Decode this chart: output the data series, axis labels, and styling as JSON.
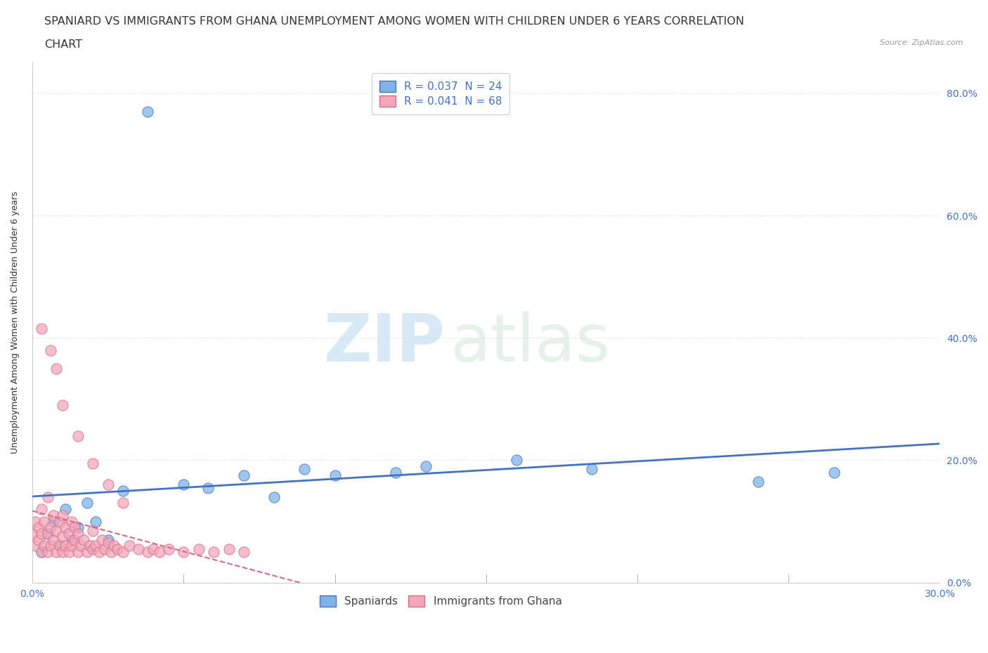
{
  "title_line1": "SPANIARD VS IMMIGRANTS FROM GHANA UNEMPLOYMENT AMONG WOMEN WITH CHILDREN UNDER 6 YEARS CORRELATION",
  "title_line2": "CHART",
  "source_text": "Source: ZipAtlas.com",
  "ylabel": "Unemployment Among Women with Children Under 6 years",
  "xlim": [
    0.0,
    0.3
  ],
  "ylim": [
    0.0,
    0.85
  ],
  "xtick_vals": [
    0.0,
    0.3
  ],
  "xtick_labels": [
    "0.0%",
    "30.0%"
  ],
  "ytick_values": [
    0.0,
    0.2,
    0.4,
    0.6,
    0.8
  ],
  "ytick_labels": [
    "0.0%",
    "20.0%",
    "40.0%",
    "60.0%",
    "80.0%"
  ],
  "color_spaniard": "#7fb3e8",
  "color_ghana": "#f4a7b9",
  "color_trend_spaniard": "#4472c4",
  "color_trend_ghana": "#d46a8a",
  "R_spaniard": 0.037,
  "N_spaniard": 24,
  "R_ghana": 0.041,
  "N_ghana": 68,
  "legend_spaniard": "Spaniards",
  "legend_ghana": "Immigrants from Ghana",
  "watermark_zip": "ZIP",
  "watermark_atlas": "atlas",
  "background_color": "#ffffff",
  "grid_color": "#d0d0d0",
  "title_fontsize": 11.5,
  "axis_label_fontsize": 9,
  "tick_fontsize": 10,
  "legend_fontsize": 11,
  "spaniard_x": [
    0.003,
    0.005,
    0.007,
    0.009,
    0.011,
    0.013,
    0.015,
    0.018,
    0.021,
    0.025,
    0.03,
    0.038,
    0.05,
    0.058,
    0.07,
    0.08,
    0.09,
    0.1,
    0.12,
    0.13,
    0.16,
    0.185,
    0.24,
    0.265
  ],
  "spaniard_y": [
    0.05,
    0.08,
    0.1,
    0.06,
    0.12,
    0.07,
    0.09,
    0.13,
    0.1,
    0.07,
    0.15,
    0.77,
    0.16,
    0.155,
    0.175,
    0.14,
    0.185,
    0.175,
    0.18,
    0.19,
    0.2,
    0.185,
    0.165,
    0.18
  ],
  "ghana_x": [
    0.0,
    0.001,
    0.001,
    0.002,
    0.002,
    0.003,
    0.003,
    0.003,
    0.004,
    0.004,
    0.005,
    0.005,
    0.005,
    0.006,
    0.006,
    0.007,
    0.007,
    0.008,
    0.008,
    0.009,
    0.009,
    0.01,
    0.01,
    0.01,
    0.011,
    0.011,
    0.012,
    0.012,
    0.013,
    0.013,
    0.014,
    0.014,
    0.015,
    0.015,
    0.016,
    0.017,
    0.018,
    0.019,
    0.02,
    0.02,
    0.021,
    0.022,
    0.023,
    0.024,
    0.025,
    0.026,
    0.027,
    0.028,
    0.03,
    0.032,
    0.035,
    0.038,
    0.04,
    0.042,
    0.045,
    0.05,
    0.055,
    0.06,
    0.065,
    0.07,
    0.003,
    0.006,
    0.008,
    0.01,
    0.015,
    0.02,
    0.025,
    0.03
  ],
  "ghana_y": [
    0.08,
    0.06,
    0.1,
    0.07,
    0.09,
    0.05,
    0.08,
    0.12,
    0.06,
    0.1,
    0.05,
    0.08,
    0.14,
    0.06,
    0.09,
    0.07,
    0.11,
    0.05,
    0.085,
    0.06,
    0.1,
    0.05,
    0.075,
    0.11,
    0.06,
    0.09,
    0.05,
    0.08,
    0.06,
    0.1,
    0.07,
    0.09,
    0.05,
    0.08,
    0.06,
    0.07,
    0.05,
    0.06,
    0.055,
    0.085,
    0.06,
    0.05,
    0.07,
    0.055,
    0.065,
    0.05,
    0.06,
    0.055,
    0.05,
    0.06,
    0.055,
    0.05,
    0.055,
    0.05,
    0.055,
    0.05,
    0.055,
    0.05,
    0.055,
    0.05,
    0.415,
    0.38,
    0.35,
    0.29,
    0.24,
    0.195,
    0.16,
    0.13
  ]
}
